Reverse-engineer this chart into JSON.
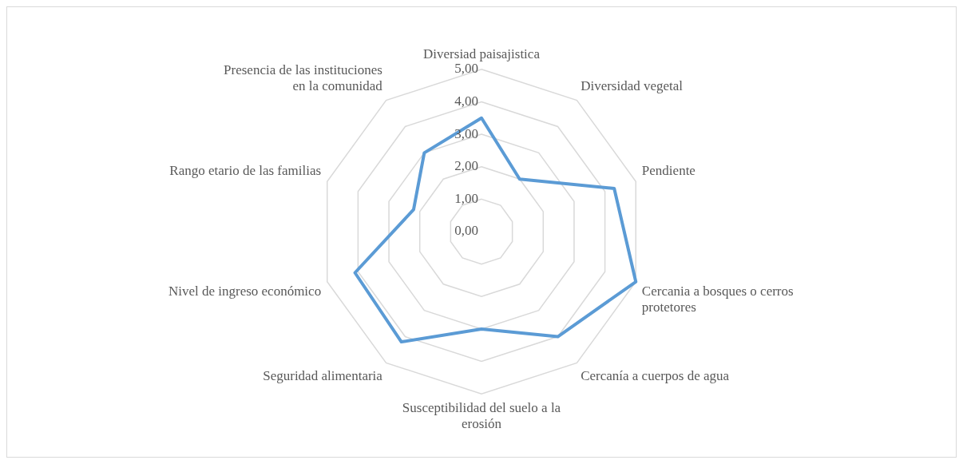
{
  "chart_data": {
    "type": "radar",
    "categories": [
      "Diversiad paisajistica",
      "Diversidad vegetal",
      "Pendiente",
      "Cercania a bosques o cerros protetores",
      "Cercanía a cuerpos de agua",
      "Susceptibilidad del suelo a la erosión",
      "Seguridad alimentaria",
      "Nivel de ingreso económico",
      "Rango etario de las familias",
      "Presencia de las instituciones en la comunidad"
    ],
    "series": [
      {
        "color": "#5b9bd5",
        "values": [
          3.5,
          2.0,
          4.3,
          5.0,
          4.0,
          3.0,
          4.2,
          4.1,
          2.2,
          3.0
        ]
      }
    ],
    "ylim": [
      0,
      5
    ],
    "yticks": [
      {
        "value": 0,
        "label": "0,00"
      },
      {
        "value": 1,
        "label": "1,00"
      },
      {
        "value": 2,
        "label": "2,00"
      },
      {
        "value": 3,
        "label": "3,00"
      },
      {
        "value": 4,
        "label": "4,00"
      },
      {
        "value": 5,
        "label": "5,00"
      }
    ],
    "grid": true,
    "legend": false,
    "marker": "none",
    "line_style": "solid"
  }
}
